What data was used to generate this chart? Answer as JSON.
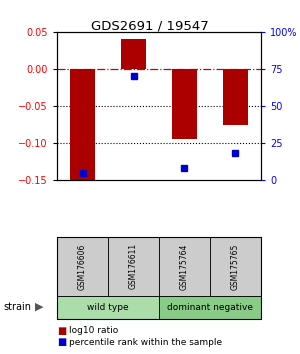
{
  "title": "GDS2691 / 19547",
  "samples": [
    "GSM176606",
    "GSM176611",
    "GSM175764",
    "GSM175765"
  ],
  "log10_ratios": [
    -0.155,
    0.04,
    -0.095,
    -0.075
  ],
  "percentile_ranks": [
    5.0,
    70.0,
    8.0,
    18.0
  ],
  "groups": [
    {
      "name": "wild type",
      "samples": [
        0,
        1
      ],
      "color": "#AADDAA"
    },
    {
      "name": "dominant negative",
      "samples": [
        2,
        3
      ],
      "color": "#88CC88"
    }
  ],
  "ylim": [
    -0.15,
    0.05
  ],
  "yticks_left": [
    -0.15,
    -0.1,
    -0.05,
    0.0,
    0.05
  ],
  "yticks_right_vals": [
    0,
    25,
    50,
    75,
    100
  ],
  "bar_color": "#AA0000",
  "dot_color": "#0000CC",
  "zero_line_color": "#CC0000",
  "grid_color": "#000000",
  "legend_bar_color": "#AA0000",
  "legend_dot_color": "#0000CC",
  "strain_label": "strain",
  "arrow_color": "#555555",
  "sample_box_color": "#CCCCCC"
}
